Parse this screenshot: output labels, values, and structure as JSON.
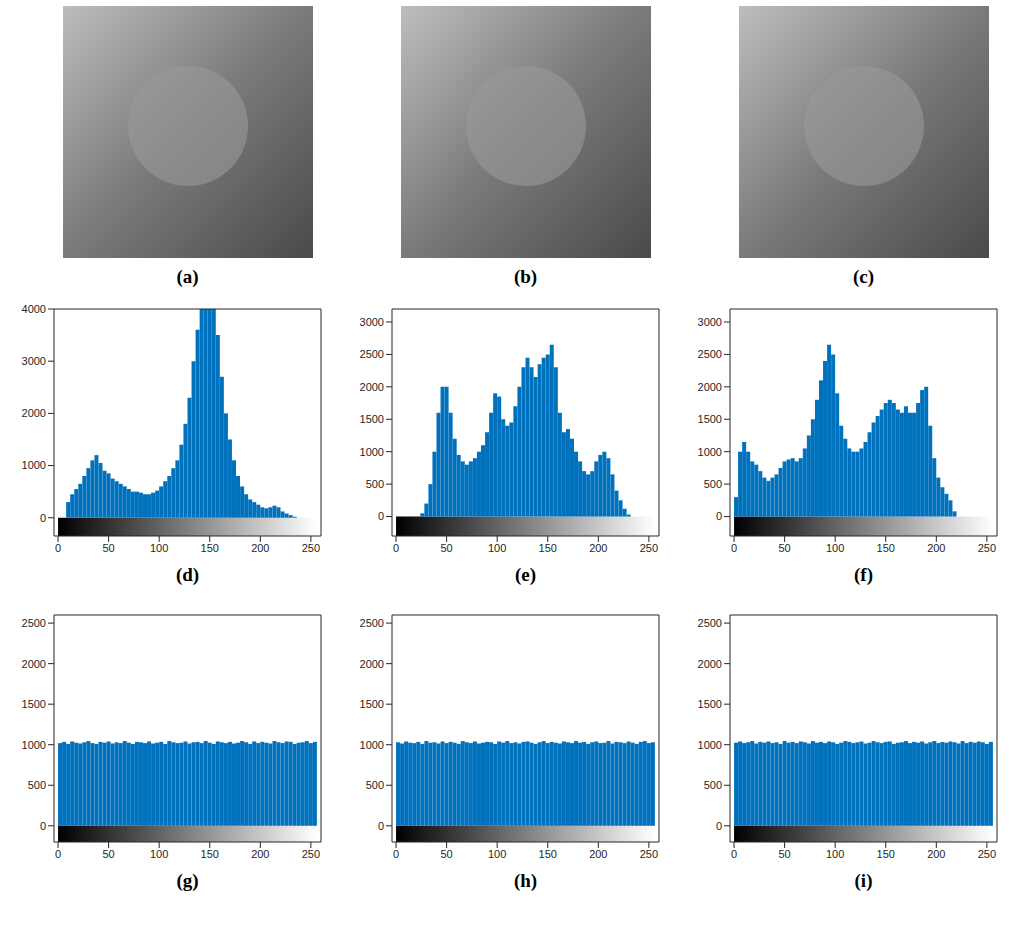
{
  "images": [
    {
      "label": "(a)"
    },
    {
      "label": "(b)"
    },
    {
      "label": "(c)"
    }
  ],
  "chart_data": [
    {
      "type": "histogram",
      "title": "(d)",
      "color": "#0072bd",
      "grid": false,
      "bins": [
        0,
        4,
        8,
        12,
        16,
        20,
        24,
        28,
        32,
        36,
        40,
        44,
        48,
        52,
        56,
        60,
        64,
        68,
        72,
        76,
        80,
        84,
        88,
        92,
        96,
        100,
        104,
        108,
        112,
        116,
        120,
        124,
        128,
        132,
        136,
        140,
        144,
        148,
        152,
        156,
        160,
        164,
        168,
        172,
        176,
        180,
        184,
        188,
        192,
        196,
        200,
        204,
        208,
        212,
        216,
        220,
        224,
        228,
        232,
        236,
        240,
        244,
        248,
        252,
        256
      ],
      "values": [
        0,
        0,
        300,
        450,
        550,
        650,
        800,
        950,
        1100,
        1200,
        1050,
        900,
        850,
        750,
        700,
        650,
        600,
        550,
        500,
        500,
        480,
        450,
        450,
        480,
        520,
        600,
        700,
        800,
        950,
        1100,
        1400,
        1800,
        2300,
        3000,
        3600,
        4000,
        4000,
        4000,
        4000,
        3500,
        2700,
        2000,
        1500,
        1100,
        800,
        600,
        450,
        350,
        300,
        250,
        200,
        180,
        200,
        230,
        200,
        120,
        80,
        50,
        20,
        0,
        0,
        0,
        0,
        0
      ],
      "xlim": [
        -4,
        260
      ],
      "xticks": [
        0,
        50,
        100,
        150,
        200,
        250
      ],
      "ylim": [
        -350,
        4000
      ],
      "yticks": [
        0,
        1000,
        2000,
        3000,
        4000
      ]
    },
    {
      "type": "histogram",
      "title": "(e)",
      "color": "#0072bd",
      "grid": false,
      "bins": [
        0,
        4,
        8,
        12,
        16,
        20,
        24,
        28,
        32,
        36,
        40,
        44,
        48,
        52,
        56,
        60,
        64,
        68,
        72,
        76,
        80,
        84,
        88,
        92,
        96,
        100,
        104,
        108,
        112,
        116,
        120,
        124,
        128,
        132,
        136,
        140,
        144,
        148,
        152,
        156,
        160,
        164,
        168,
        172,
        176,
        180,
        184,
        188,
        192,
        196,
        200,
        204,
        208,
        212,
        216,
        220,
        224,
        228,
        232,
        236,
        240,
        244,
        248,
        252,
        256
      ],
      "values": [
        0,
        0,
        0,
        0,
        0,
        0,
        50,
        200,
        500,
        1000,
        1600,
        2000,
        2000,
        1600,
        1200,
        950,
        850,
        800,
        850,
        900,
        1000,
        1100,
        1300,
        1600,
        1900,
        1850,
        1500,
        1400,
        1450,
        1700,
        2000,
        2300,
        2450,
        2300,
        2150,
        2350,
        2450,
        2500,
        2650,
        2300,
        1600,
        1300,
        1350,
        1200,
        1000,
        850,
        700,
        650,
        700,
        850,
        950,
        1000,
        900,
        650,
        400,
        250,
        120,
        30,
        0,
        0,
        0,
        0,
        0,
        0
      ],
      "xlim": [
        -4,
        260
      ],
      "xticks": [
        0,
        50,
        100,
        150,
        200,
        250
      ],
      "ylim": [
        -300,
        3200
      ],
      "yticks": [
        0,
        500,
        1000,
        1500,
        2000,
        2500,
        3000
      ]
    },
    {
      "type": "histogram",
      "title": "(f)",
      "color": "#0072bd",
      "grid": false,
      "bins": [
        0,
        4,
        8,
        12,
        16,
        20,
        24,
        28,
        32,
        36,
        40,
        44,
        48,
        52,
        56,
        60,
        64,
        68,
        72,
        76,
        80,
        84,
        88,
        92,
        96,
        100,
        104,
        108,
        112,
        116,
        120,
        124,
        128,
        132,
        136,
        140,
        144,
        148,
        152,
        156,
        160,
        164,
        168,
        172,
        176,
        180,
        184,
        188,
        192,
        196,
        200,
        204,
        208,
        212,
        216,
        220,
        224,
        228,
        232,
        236,
        240,
        244,
        248,
        252,
        256
      ],
      "values": [
        300,
        1000,
        1150,
        1000,
        850,
        800,
        700,
        600,
        550,
        600,
        650,
        750,
        850,
        880,
        900,
        850,
        900,
        1050,
        1250,
        1500,
        1800,
        2100,
        2400,
        2650,
        2500,
        1900,
        1400,
        1200,
        1050,
        1000,
        1000,
        1050,
        1150,
        1300,
        1450,
        1550,
        1650,
        1750,
        1800,
        1750,
        1650,
        1600,
        1700,
        1600,
        1600,
        1750,
        1950,
        2000,
        1400,
        900,
        600,
        450,
        350,
        250,
        80,
        0,
        0,
        0,
        0,
        0,
        0,
        0,
        0,
        0
      ],
      "xlim": [
        -4,
        260
      ],
      "xticks": [
        0,
        50,
        100,
        150,
        200,
        250
      ],
      "ylim": [
        -300,
        3200
      ],
      "yticks": [
        0,
        500,
        1000,
        1500,
        2000,
        2500,
        3000
      ]
    },
    {
      "type": "histogram",
      "title": "(g)",
      "color": "#0072bd",
      "grid": false,
      "bins": [
        0,
        4,
        8,
        12,
        16,
        20,
        24,
        28,
        32,
        36,
        40,
        44,
        48,
        52,
        56,
        60,
        64,
        68,
        72,
        76,
        80,
        84,
        88,
        92,
        96,
        100,
        104,
        108,
        112,
        116,
        120,
        124,
        128,
        132,
        136,
        140,
        144,
        148,
        152,
        156,
        160,
        164,
        168,
        172,
        176,
        180,
        184,
        188,
        192,
        196,
        200,
        204,
        208,
        212,
        216,
        220,
        224,
        228,
        232,
        236,
        240,
        244,
        248,
        252,
        256
      ],
      "values": [
        1020,
        1035,
        1010,
        1040,
        1025,
        1015,
        1030,
        1045,
        1020,
        1010,
        1035,
        1025,
        1040,
        1015,
        1030,
        1020,
        1045,
        1025,
        1010,
        1035,
        1030,
        1020,
        1040,
        1015,
        1025,
        1035,
        1010,
        1045,
        1030,
        1020,
        1025,
        1040,
        1015,
        1030,
        1035,
        1020,
        1045,
        1025,
        1010,
        1040,
        1030,
        1020,
        1035,
        1015,
        1025,
        1045,
        1030,
        1010,
        1040,
        1020,
        1035,
        1025,
        1015,
        1045,
        1030,
        1020,
        1040,
        1035,
        1010,
        1025,
        1030,
        1045,
        1020,
        1035
      ],
      "xlim": [
        -4,
        260
      ],
      "xticks": [
        0,
        50,
        100,
        150,
        200,
        250
      ],
      "ylim": [
        -200,
        2600
      ],
      "yticks": [
        0,
        500,
        1000,
        1500,
        2000,
        2500
      ]
    },
    {
      "type": "histogram",
      "title": "(h)",
      "color": "#0072bd",
      "grid": false,
      "bins": [
        0,
        4,
        8,
        12,
        16,
        20,
        24,
        28,
        32,
        36,
        40,
        44,
        48,
        52,
        56,
        60,
        64,
        68,
        72,
        76,
        80,
        84,
        88,
        92,
        96,
        100,
        104,
        108,
        112,
        116,
        120,
        124,
        128,
        132,
        136,
        140,
        144,
        148,
        152,
        156,
        160,
        164,
        168,
        172,
        176,
        180,
        184,
        188,
        192,
        196,
        200,
        204,
        208,
        212,
        216,
        220,
        224,
        228,
        232,
        236,
        240,
        244,
        248,
        252,
        256
      ],
      "values": [
        1030,
        1015,
        1040,
        1025,
        1020,
        1035,
        1010,
        1045,
        1025,
        1030,
        1015,
        1040,
        1020,
        1035,
        1025,
        1010,
        1045,
        1030,
        1020,
        1040,
        1015,
        1025,
        1035,
        1030,
        1010,
        1040,
        1025,
        1045,
        1020,
        1030,
        1015,
        1035,
        1040,
        1025,
        1010,
        1030,
        1045,
        1020,
        1035,
        1025,
        1015,
        1040,
        1030,
        1020,
        1045,
        1025,
        1035,
        1010,
        1030,
        1040,
        1020,
        1025,
        1045,
        1015,
        1035,
        1030,
        1020,
        1040,
        1025,
        1010,
        1035,
        1045,
        1020,
        1030
      ],
      "xlim": [
        -4,
        260
      ],
      "xticks": [
        0,
        50,
        100,
        150,
        200,
        250
      ],
      "ylim": [
        -200,
        2600
      ],
      "yticks": [
        0,
        500,
        1000,
        1500,
        2000,
        2500
      ]
    },
    {
      "type": "histogram",
      "title": "(i)",
      "color": "#0072bd",
      "grid": false,
      "bins": [
        0,
        4,
        8,
        12,
        16,
        20,
        24,
        28,
        32,
        36,
        40,
        44,
        48,
        52,
        56,
        60,
        64,
        68,
        72,
        76,
        80,
        84,
        88,
        92,
        96,
        100,
        104,
        108,
        112,
        116,
        120,
        124,
        128,
        132,
        136,
        140,
        144,
        148,
        152,
        156,
        160,
        164,
        168,
        172,
        176,
        180,
        184,
        188,
        192,
        196,
        200,
        204,
        208,
        212,
        216,
        220,
        224,
        228,
        232,
        236,
        240,
        244,
        248,
        252,
        256
      ],
      "values": [
        1025,
        1040,
        1020,
        1030,
        1045,
        1015,
        1035,
        1025,
        1040,
        1020,
        1030,
        1010,
        1045,
        1025,
        1035,
        1020,
        1040,
        1030,
        1015,
        1045,
        1025,
        1035,
        1020,
        1040,
        1030,
        1010,
        1025,
        1045,
        1035,
        1020,
        1030,
        1040,
        1015,
        1025,
        1045,
        1030,
        1020,
        1035,
        1040,
        1010,
        1025,
        1030,
        1045,
        1020,
        1035,
        1025,
        1040,
        1015,
        1030,
        1045,
        1020,
        1035,
        1025,
        1040,
        1030,
        1015,
        1045,
        1020,
        1035,
        1025,
        1040,
        1030,
        1010,
        1035
      ],
      "xlim": [
        -4,
        260
      ],
      "xticks": [
        0,
        50,
        100,
        150,
        200,
        250
      ],
      "ylim": [
        -200,
        2600
      ],
      "yticks": [
        0,
        500,
        1000,
        1500,
        2000,
        2500
      ]
    }
  ]
}
